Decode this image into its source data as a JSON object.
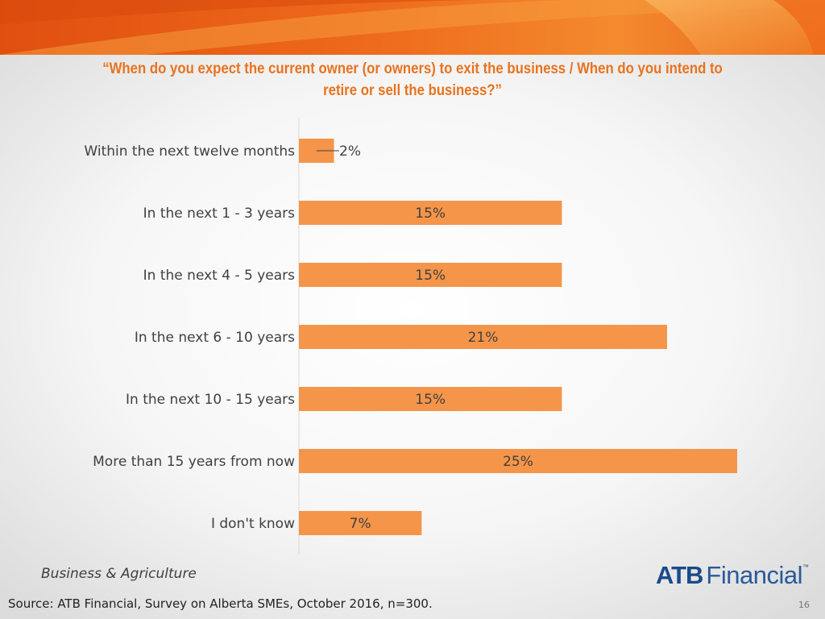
{
  "slide": {
    "title": "“When do you expect the current owner (or owners) to exit the business / When do you intend to retire or sell the business?”",
    "subtitle": "Business & Agriculture",
    "source": "Source:  ATB Financial, Survey on Alberta SMEs, October 2016, n=300.",
    "page_number": "16",
    "logo": {
      "atb": "ATB",
      "financial": "Financial",
      "tm": "™",
      "color": "#1a4a8a"
    }
  },
  "colors": {
    "accent": "#e8731f",
    "bar": "#f5954a",
    "banner_dark": "#e04f0f",
    "banner_light": "#f7a24a"
  },
  "chart_data": {
    "type": "bar",
    "orientation": "horizontal",
    "categories": [
      "Within the next twelve months",
      "In the next 1 - 3 years",
      "In the next 4 - 5 years",
      "In the next 6 - 10 years",
      "In the next 10 - 15 years",
      "More than 15 years from now",
      "I don't know"
    ],
    "values": [
      2,
      15,
      15,
      21,
      15,
      25,
      7
    ],
    "data_labels": [
      "2%",
      "15%",
      "15%",
      "21%",
      "15%",
      "25%",
      "7%"
    ],
    "value_unit": "%",
    "grid": false,
    "legend": "none"
  }
}
